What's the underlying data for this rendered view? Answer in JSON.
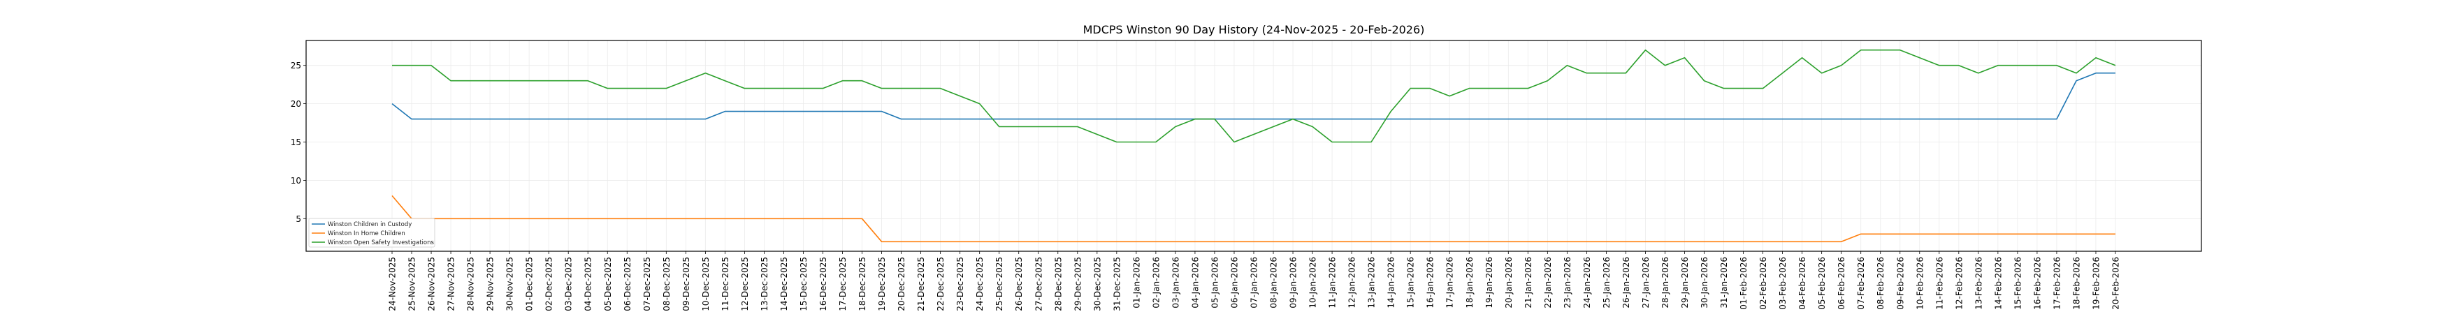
{
  "chart_data": {
    "type": "line",
    "title": "MDCPS Winston 90 Day History (24-Nov-2025 - 20-Feb-2026)",
    "xlabel": "",
    "ylabel": "",
    "ylim": [
      0.75,
      28.25
    ],
    "yticks": [
      5,
      10,
      15,
      20,
      25
    ],
    "grid": true,
    "legend_position": "lower-left",
    "x": [
      "24-Nov-2025",
      "25-Nov-2025",
      "26-Nov-2025",
      "27-Nov-2025",
      "28-Nov-2025",
      "29-Nov-2025",
      "30-Nov-2025",
      "01-Dec-2025",
      "02-Dec-2025",
      "03-Dec-2025",
      "04-Dec-2025",
      "05-Dec-2025",
      "06-Dec-2025",
      "07-Dec-2025",
      "08-Dec-2025",
      "09-Dec-2025",
      "10-Dec-2025",
      "11-Dec-2025",
      "12-Dec-2025",
      "13-Dec-2025",
      "14-Dec-2025",
      "15-Dec-2025",
      "16-Dec-2025",
      "17-Dec-2025",
      "18-Dec-2025",
      "19-Dec-2025",
      "20-Dec-2025",
      "21-Dec-2025",
      "22-Dec-2025",
      "23-Dec-2025",
      "24-Dec-2025",
      "25-Dec-2025",
      "26-Dec-2025",
      "27-Dec-2025",
      "28-Dec-2025",
      "29-Dec-2025",
      "30-Dec-2025",
      "31-Dec-2025",
      "01-Jan-2026",
      "02-Jan-2026",
      "03-Jan-2026",
      "04-Jan-2026",
      "05-Jan-2026",
      "06-Jan-2026",
      "07-Jan-2026",
      "08-Jan-2026",
      "09-Jan-2026",
      "10-Jan-2026",
      "11-Jan-2026",
      "12-Jan-2026",
      "13-Jan-2026",
      "14-Jan-2026",
      "15-Jan-2026",
      "16-Jan-2026",
      "17-Jan-2026",
      "18-Jan-2026",
      "19-Jan-2026",
      "20-Jan-2026",
      "21-Jan-2026",
      "22-Jan-2026",
      "23-Jan-2026",
      "24-Jan-2026",
      "25-Jan-2026",
      "26-Jan-2026",
      "27-Jan-2026",
      "28-Jan-2026",
      "29-Jan-2026",
      "30-Jan-2026",
      "31-Jan-2026",
      "01-Feb-2026",
      "02-Feb-2026",
      "03-Feb-2026",
      "04-Feb-2026",
      "05-Feb-2026",
      "06-Feb-2026",
      "07-Feb-2026",
      "08-Feb-2026",
      "09-Feb-2026",
      "10-Feb-2026",
      "11-Feb-2026",
      "12-Feb-2026",
      "13-Feb-2026",
      "14-Feb-2026",
      "15-Feb-2026",
      "16-Feb-2026",
      "17-Feb-2026",
      "18-Feb-2026",
      "19-Feb-2026",
      "20-Feb-2026"
    ],
    "series": [
      {
        "name": "Winston Children in Custody",
        "color": "#1f77b4",
        "values": [
          20,
          18,
          18,
          18,
          18,
          18,
          18,
          18,
          18,
          18,
          18,
          18,
          18,
          18,
          18,
          18,
          18,
          19,
          19,
          19,
          19,
          19,
          19,
          19,
          19,
          19,
          18,
          18,
          18,
          18,
          18,
          18,
          18,
          18,
          18,
          18,
          18,
          18,
          18,
          18,
          18,
          18,
          18,
          18,
          18,
          18,
          18,
          18,
          18,
          18,
          18,
          18,
          18,
          18,
          18,
          18,
          18,
          18,
          18,
          18,
          18,
          18,
          18,
          18,
          18,
          18,
          18,
          18,
          18,
          18,
          18,
          18,
          18,
          18,
          18,
          18,
          18,
          18,
          18,
          18,
          18,
          18,
          18,
          18,
          18,
          18,
          23,
          24,
          24
        ]
      },
      {
        "name": "Winston In Home Children",
        "color": "#ff7f0e",
        "values": [
          8,
          5,
          5,
          5,
          5,
          5,
          5,
          5,
          5,
          5,
          5,
          5,
          5,
          5,
          5,
          5,
          5,
          5,
          5,
          5,
          5,
          5,
          5,
          5,
          5,
          2,
          2,
          2,
          2,
          2,
          2,
          2,
          2,
          2,
          2,
          2,
          2,
          2,
          2,
          2,
          2,
          2,
          2,
          2,
          2,
          2,
          2,
          2,
          2,
          2,
          2,
          2,
          2,
          2,
          2,
          2,
          2,
          2,
          2,
          2,
          2,
          2,
          2,
          2,
          2,
          2,
          2,
          2,
          2,
          2,
          2,
          2,
          2,
          2,
          2,
          3,
          3,
          3,
          3,
          3,
          3,
          3,
          3,
          3,
          3,
          3,
          3,
          3,
          3
        ]
      },
      {
        "name": "Winston Open Safety Investigations",
        "color": "#2ca02c",
        "values": [
          25,
          25,
          25,
          23,
          23,
          23,
          23,
          23,
          23,
          23,
          23,
          22,
          22,
          22,
          22,
          23,
          24,
          23,
          22,
          22,
          22,
          22,
          22,
          23,
          23,
          22,
          22,
          22,
          22,
          21,
          20,
          17,
          17,
          17,
          17,
          17,
          16,
          15,
          15,
          15,
          17,
          18,
          18,
          15,
          16,
          17,
          18,
          17,
          15,
          15,
          15,
          19,
          22,
          22,
          21,
          22,
          22,
          22,
          22,
          23,
          25,
          24,
          24,
          24,
          27,
          25,
          26,
          23,
          22,
          22,
          22,
          24,
          26,
          24,
          25,
          27,
          27,
          27,
          26,
          25,
          25,
          24,
          25,
          25,
          25,
          25,
          24,
          26,
          25
        ]
      }
    ]
  }
}
